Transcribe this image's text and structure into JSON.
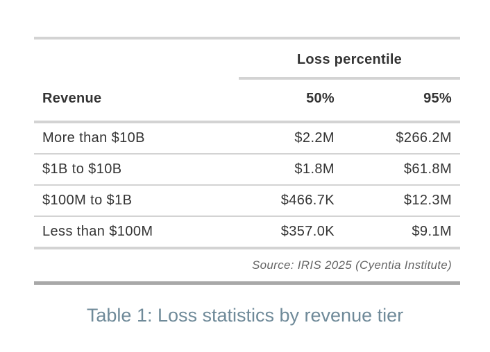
{
  "table": {
    "spanner": "Loss percentile",
    "columns": [
      "Revenue",
      "50%",
      "95%"
    ],
    "rows": [
      [
        "More than $10B",
        "$2.2M",
        "$266.2M"
      ],
      [
        "$1B to $10B",
        "$1.8M",
        "$61.8M"
      ],
      [
        "$100M to $1B",
        "$466.7K",
        "$12.3M"
      ],
      [
        "Less than $100M",
        "$357.0K",
        "$9.1M"
      ]
    ],
    "source": "Source: IRIS 2025 (Cyentia Institute)"
  },
  "caption": "Table 1: Loss statistics by revenue tier"
}
